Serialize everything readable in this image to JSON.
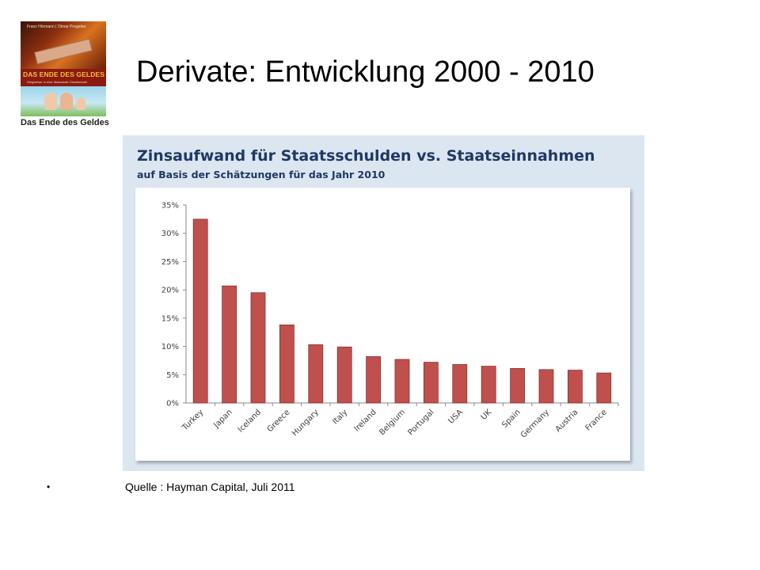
{
  "slide": {
    "title": "Derivate: Entwicklung 2000 - 2010",
    "source": "Quelle : Hayman Capital, Juli 2011",
    "bullet": "•"
  },
  "book": {
    "authors": "Franz Hörmann | Otmar Pregetter",
    "cover_title": "DAS ENDE DES GELDES",
    "cover_subtitle": "Wegweiser in eine ökosoziale Gesellschaft",
    "caption": "Das Ende des Geldes"
  },
  "colors": {
    "bar": "#c0504d",
    "bar_stroke": "#8c2f2d",
    "panel_bg": "#dbe6f1",
    "title": "#1f3864",
    "grid": "#d9d9d9"
  },
  "chart_data": {
    "type": "bar",
    "title": "Zinsaufwand für Staatsschulden vs. Staatseinnahmen",
    "subtitle": "auf Basis der Schätzungen für das Jahr 2010",
    "categories": [
      "Turkey",
      "Japan",
      "Iceland",
      "Greece",
      "Hungary",
      "Italy",
      "Ireland",
      "Belgium",
      "Portugal",
      "USA",
      "UK",
      "Spain",
      "Germany",
      "Austria",
      "France"
    ],
    "values": [
      32.5,
      20.7,
      19.5,
      13.8,
      10.3,
      9.9,
      8.2,
      7.7,
      7.2,
      6.8,
      6.5,
      6.1,
      5.9,
      5.8,
      5.3
    ],
    "ylim": [
      0,
      35
    ],
    "yticks": [
      0,
      5,
      10,
      15,
      20,
      25,
      30,
      35
    ],
    "ytick_labels": [
      "0%",
      "5%",
      "10%",
      "15%",
      "20%",
      "25%",
      "30%",
      "35%"
    ],
    "grid": false,
    "legend": "none"
  }
}
